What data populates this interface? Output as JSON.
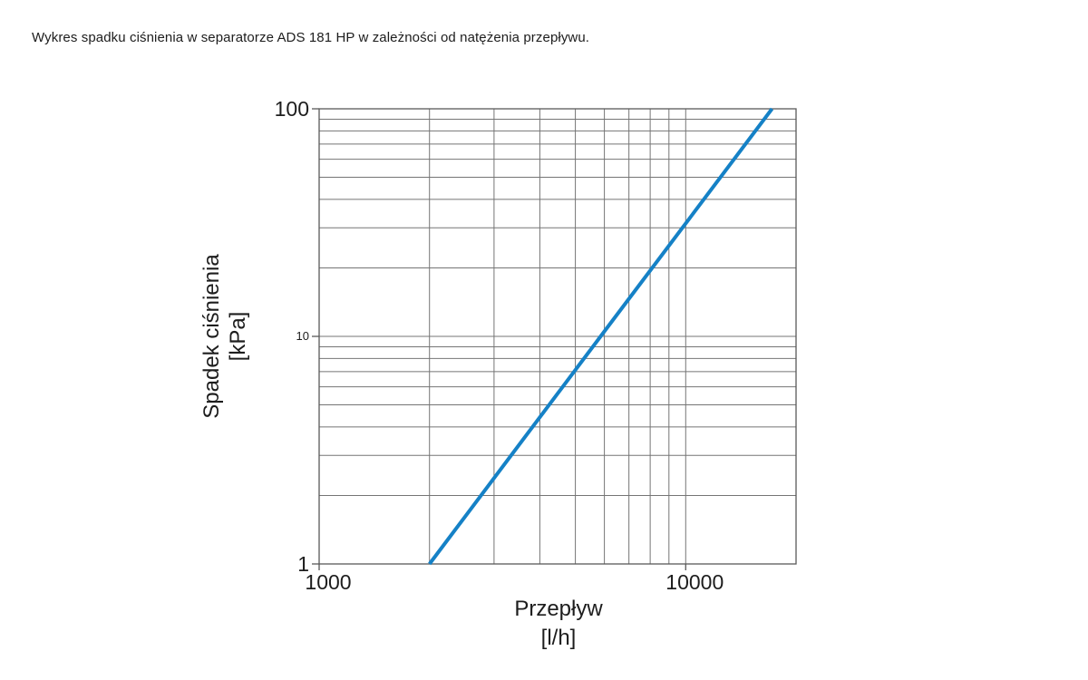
{
  "caption": "Wykres spadku ciśnienia w separatorze ADS 181 HP w zależności od natężenia przepływu.",
  "colors": {
    "line": "#1581c6",
    "grid": "#757575",
    "axis": "#595959",
    "text": "#1d1d1d",
    "background": "#ffffff"
  },
  "chart_data": {
    "type": "line",
    "title": "",
    "x_scale": "log",
    "y_scale": "log",
    "xlim": [
      1000,
      20000
    ],
    "ylim": [
      1,
      100
    ],
    "grid": true,
    "legend": "none",
    "xlabel_lines": [
      "Przepływ",
      "[l/h]"
    ],
    "ylabel_lines": [
      "Spadek ciśnienia",
      "[kPa]"
    ],
    "x_ticks": [
      {
        "value": 1000,
        "label": "1000"
      },
      {
        "value": 10000,
        "label": "10000"
      }
    ],
    "y_ticks": [
      {
        "value": 1,
        "label": "1"
      },
      {
        "value": 10,
        "label": "10",
        "small": true
      },
      {
        "value": 100,
        "label": "100"
      }
    ],
    "series": [
      {
        "name": "ADS 181 HP",
        "color": "#1581c6",
        "points": [
          [
            2000,
            1
          ],
          [
            5860,
            10
          ],
          [
            17200,
            100
          ]
        ]
      }
    ]
  }
}
